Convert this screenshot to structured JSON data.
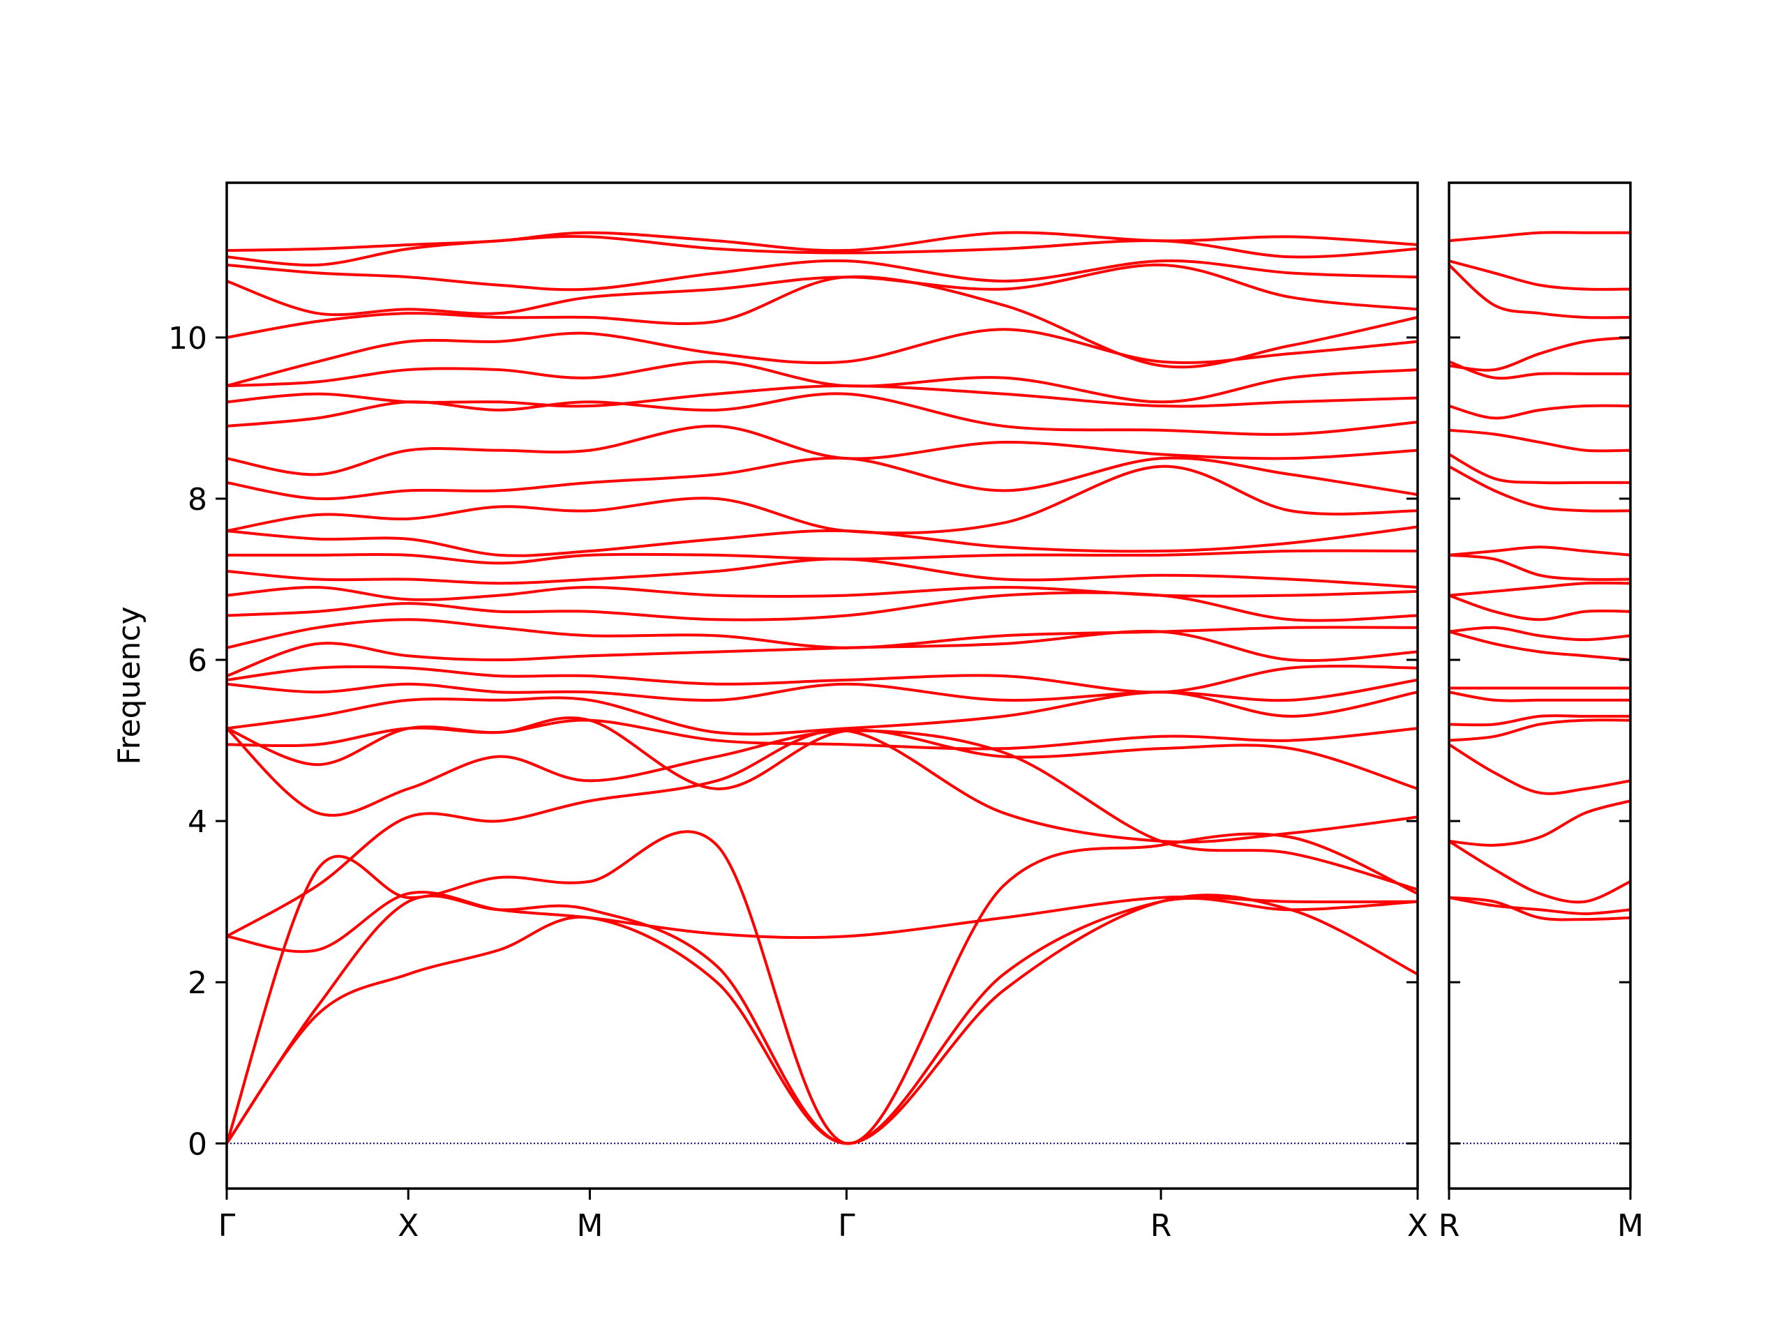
{
  "chart_data": [
    {
      "type": "line",
      "ylabel": "Frequency",
      "color": "#ff0000",
      "hline": 0,
      "hline_color": "#00008b",
      "x": [
        0,
        0.25,
        0.5,
        0.75,
        1.0,
        1.35,
        1.707,
        2.14,
        2.573,
        2.93,
        3.28
      ],
      "xlim": [
        0,
        3.28
      ],
      "ylim": [
        -0.56,
        11.92
      ],
      "yticks": [
        0,
        2,
        4,
        6,
        8,
        10
      ],
      "xticks": [
        {
          "value": 0,
          "label": "Γ"
        },
        {
          "value": 0.5,
          "label": "X"
        },
        {
          "value": 1.0,
          "label": "M"
        },
        {
          "value": 1.707,
          "label": "Γ"
        },
        {
          "value": 2.573,
          "label": "R"
        },
        {
          "value": 3.28,
          "label": "X"
        }
      ],
      "series": [
        {
          "values": [
            0,
            1.6,
            2.1,
            2.4,
            2.8,
            2.0,
            0,
            1.9,
            3.0,
            2.9,
            2.1
          ]
        },
        {
          "values": [
            0,
            1.7,
            3.0,
            2.9,
            2.9,
            2.2,
            0,
            2.1,
            3.0,
            2.9,
            3.0
          ]
        },
        {
          "values": [
            0,
            3.4,
            3.05,
            3.3,
            3.25,
            3.7,
            0,
            3.2,
            3.7,
            3.8,
            3.1
          ]
        },
        {
          "values": [
            2.57,
            2.4,
            3.1,
            2.9,
            2.8,
            2.6,
            2.57,
            2.8,
            3.05,
            3.0,
            3.0
          ]
        },
        {
          "values": [
            2.57,
            3.2,
            4.05,
            4.0,
            4.25,
            4.5,
            5.12,
            4.1,
            3.75,
            3.85,
            4.05
          ]
        },
        {
          "values": [
            5.15,
            4.1,
            4.4,
            4.8,
            4.5,
            4.8,
            5.12,
            4.85,
            3.75,
            3.6,
            3.15
          ]
        },
        {
          "values": [
            5.15,
            4.7,
            5.15,
            5.1,
            5.25,
            4.4,
            5.12,
            4.8,
            4.9,
            4.9,
            4.4
          ]
        },
        {
          "values": [
            4.95,
            4.95,
            5.15,
            5.1,
            5.25,
            5.0,
            4.95,
            4.9,
            5.05,
            5.0,
            5.15
          ]
        },
        {
          "values": [
            5.15,
            5.3,
            5.5,
            5.5,
            5.5,
            5.1,
            5.15,
            5.3,
            5.6,
            5.3,
            5.6
          ]
        },
        {
          "values": [
            5.7,
            5.6,
            5.7,
            5.6,
            5.6,
            5.5,
            5.7,
            5.5,
            5.6,
            5.5,
            5.75
          ]
        },
        {
          "values": [
            5.75,
            5.9,
            5.9,
            5.8,
            5.8,
            5.7,
            5.75,
            5.8,
            5.6,
            5.9,
            5.9
          ]
        },
        {
          "values": [
            5.8,
            6.2,
            6.05,
            6.0,
            6.05,
            6.1,
            6.15,
            6.2,
            6.35,
            6.0,
            6.1
          ]
        },
        {
          "values": [
            6.15,
            6.4,
            6.5,
            6.4,
            6.3,
            6.3,
            6.15,
            6.3,
            6.35,
            6.4,
            6.4
          ]
        },
        {
          "values": [
            6.55,
            6.6,
            6.7,
            6.6,
            6.6,
            6.5,
            6.55,
            6.8,
            6.8,
            6.5,
            6.55
          ]
        },
        {
          "values": [
            6.8,
            6.9,
            6.75,
            6.8,
            6.9,
            6.8,
            6.8,
            6.9,
            6.8,
            6.8,
            6.85
          ]
        },
        {
          "values": [
            7.1,
            7.0,
            7.0,
            6.95,
            7.0,
            7.1,
            7.25,
            7.0,
            7.05,
            7.0,
            6.9
          ]
        },
        {
          "values": [
            7.3,
            7.3,
            7.3,
            7.2,
            7.3,
            7.3,
            7.25,
            7.3,
            7.3,
            7.35,
            7.35
          ]
        },
        {
          "values": [
            7.6,
            7.5,
            7.5,
            7.3,
            7.35,
            7.5,
            7.6,
            7.4,
            7.35,
            7.45,
            7.65
          ]
        },
        {
          "values": [
            7.6,
            7.8,
            7.75,
            7.9,
            7.85,
            8.0,
            7.6,
            7.7,
            8.4,
            7.85,
            7.85
          ]
        },
        {
          "values": [
            8.2,
            8.0,
            8.1,
            8.1,
            8.2,
            8.3,
            8.5,
            8.1,
            8.5,
            8.3,
            8.05
          ]
        },
        {
          "values": [
            8.5,
            8.3,
            8.6,
            8.6,
            8.6,
            8.9,
            8.5,
            8.7,
            8.55,
            8.5,
            8.6
          ]
        },
        {
          "values": [
            8.9,
            9.0,
            9.2,
            9.1,
            9.2,
            9.1,
            9.3,
            8.9,
            8.85,
            8.8,
            8.95
          ]
        },
        {
          "values": [
            9.2,
            9.3,
            9.2,
            9.2,
            9.15,
            9.3,
            9.4,
            9.3,
            9.15,
            9.2,
            9.25
          ]
        },
        {
          "values": [
            9.4,
            9.45,
            9.6,
            9.6,
            9.5,
            9.7,
            9.4,
            9.5,
            9.2,
            9.5,
            9.6
          ]
        },
        {
          "values": [
            9.4,
            9.7,
            9.95,
            9.95,
            10.05,
            9.8,
            9.7,
            10.1,
            9.7,
            9.8,
            9.95
          ]
        },
        {
          "values": [
            10.0,
            10.2,
            10.3,
            10.25,
            10.25,
            10.2,
            10.75,
            10.4,
            9.65,
            9.9,
            10.25
          ]
        },
        {
          "values": [
            10.7,
            10.3,
            10.35,
            10.3,
            10.5,
            10.6,
            10.75,
            10.6,
            10.9,
            10.5,
            10.35
          ]
        },
        {
          "values": [
            10.9,
            10.8,
            10.75,
            10.65,
            10.6,
            10.8,
            10.95,
            10.7,
            10.95,
            10.8,
            10.75
          ]
        },
        {
          "values": [
            11.0,
            10.9,
            11.1,
            11.2,
            11.25,
            11.1,
            11.05,
            11.1,
            11.2,
            11.0,
            11.1
          ]
        },
        {
          "values": [
            11.08,
            11.1,
            11.15,
            11.2,
            11.3,
            11.2,
            11.08,
            11.3,
            11.2,
            11.25,
            11.15
          ]
        }
      ]
    },
    {
      "type": "line",
      "color": "#ff0000",
      "hline": 0,
      "hline_color": "#00008b",
      "x": [
        0,
        0.125,
        0.25,
        0.375,
        0.5
      ],
      "xlim": [
        0,
        0.5
      ],
      "ylim": [
        -0.56,
        11.92
      ],
      "yticks": [
        0,
        2,
        4,
        6,
        8,
        10
      ],
      "xticks": [
        {
          "value": 0,
          "label": "R"
        },
        {
          "value": 0.5,
          "label": "M"
        }
      ],
      "series": [
        {
          "values": [
            3.05,
            3.0,
            2.8,
            2.78,
            2.8
          ]
        },
        {
          "values": [
            3.05,
            2.95,
            2.9,
            2.85,
            2.9
          ]
        },
        {
          "values": [
            3.75,
            3.4,
            3.1,
            3.0,
            3.25
          ]
        },
        {
          "values": [
            3.75,
            3.7,
            3.8,
            4.1,
            4.25
          ]
        },
        {
          "values": [
            4.95,
            4.6,
            4.35,
            4.4,
            4.5
          ]
        },
        {
          "values": [
            5.0,
            5.05,
            5.2,
            5.25,
            5.25
          ]
        },
        {
          "values": [
            5.2,
            5.2,
            5.3,
            5.3,
            5.3
          ]
        },
        {
          "values": [
            5.6,
            5.5,
            5.5,
            5.5,
            5.5
          ]
        },
        {
          "values": [
            5.65,
            5.65,
            5.65,
            5.65,
            5.65
          ]
        },
        {
          "values": [
            6.35,
            6.2,
            6.1,
            6.05,
            6.0
          ]
        },
        {
          "values": [
            6.35,
            6.4,
            6.3,
            6.25,
            6.3
          ]
        },
        {
          "values": [
            6.8,
            6.6,
            6.5,
            6.6,
            6.6
          ]
        },
        {
          "values": [
            6.8,
            6.85,
            6.9,
            6.95,
            6.95
          ]
        },
        {
          "values": [
            7.3,
            7.25,
            7.05,
            7.0,
            7.0
          ]
        },
        {
          "values": [
            7.3,
            7.35,
            7.4,
            7.35,
            7.3
          ]
        },
        {
          "values": [
            8.4,
            8.1,
            7.9,
            7.85,
            7.85
          ]
        },
        {
          "values": [
            8.55,
            8.25,
            8.2,
            8.2,
            8.2
          ]
        },
        {
          "values": [
            8.85,
            8.8,
            8.7,
            8.6,
            8.6
          ]
        },
        {
          "values": [
            9.15,
            9.0,
            9.1,
            9.15,
            9.15
          ]
        },
        {
          "values": [
            9.7,
            9.5,
            9.55,
            9.55,
            9.55
          ]
        },
        {
          "values": [
            9.65,
            9.6,
            9.8,
            9.95,
            10.0
          ]
        },
        {
          "values": [
            10.9,
            10.4,
            10.3,
            10.25,
            10.25
          ]
        },
        {
          "values": [
            10.95,
            10.8,
            10.65,
            10.6,
            10.6
          ]
        },
        {
          "values": [
            11.2,
            11.25,
            11.3,
            11.3,
            11.3
          ]
        }
      ]
    }
  ]
}
